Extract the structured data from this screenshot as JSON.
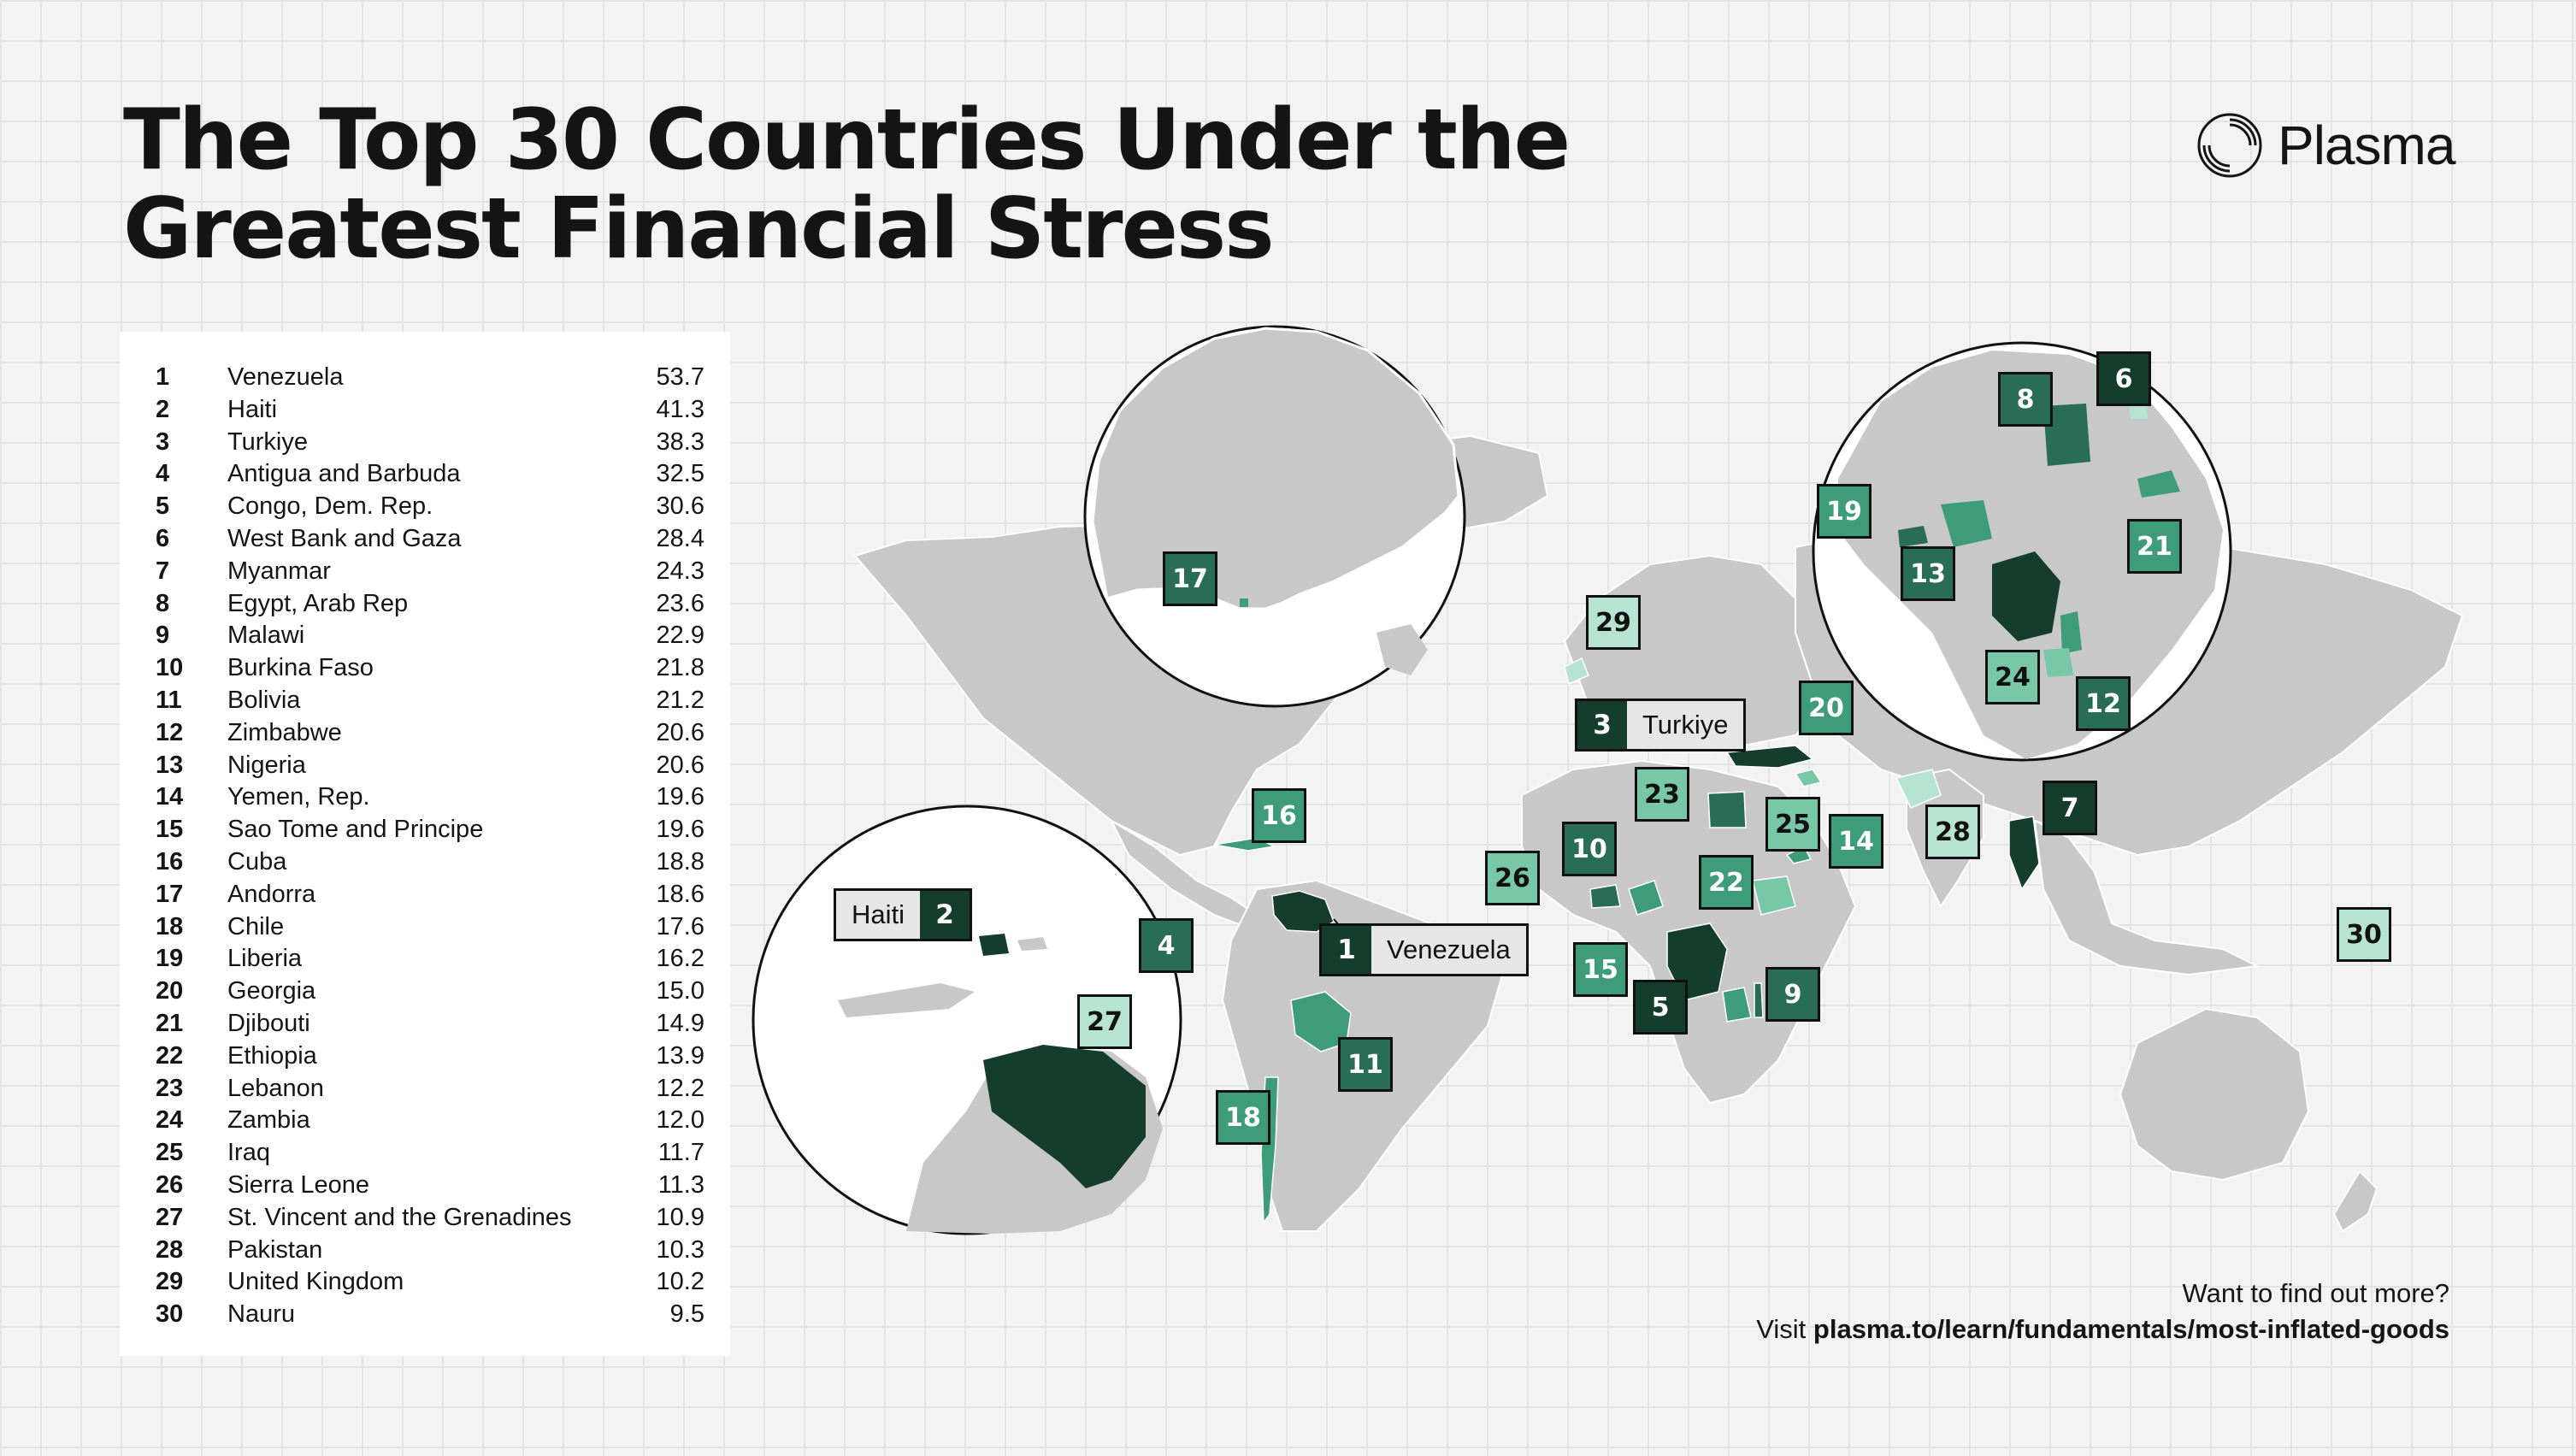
{
  "title": "The Top 30 Countries Under the Greatest Financial Stress",
  "brand": {
    "name": "Plasma"
  },
  "ranking": [
    {
      "rank": "1",
      "country": "Venezuela",
      "value": "53.7"
    },
    {
      "rank": "2",
      "country": "Haiti",
      "value": "41.3"
    },
    {
      "rank": "3",
      "country": "Turkiye",
      "value": "38.3"
    },
    {
      "rank": "4",
      "country": "Antigua and Barbuda",
      "value": "32.5"
    },
    {
      "rank": "5",
      "country": "Congo, Dem. Rep.",
      "value": "30.6"
    },
    {
      "rank": "6",
      "country": "West Bank and Gaza",
      "value": "28.4"
    },
    {
      "rank": "7",
      "country": "Myanmar",
      "value": "24.3"
    },
    {
      "rank": "8",
      "country": "Egypt, Arab Rep",
      "value": "23.6"
    },
    {
      "rank": "9",
      "country": "Malawi",
      "value": "22.9"
    },
    {
      "rank": "10",
      "country": "Burkina Faso",
      "value": "21.8"
    },
    {
      "rank": "11",
      "country": "Bolivia",
      "value": "21.2"
    },
    {
      "rank": "12",
      "country": "Zimbabwe",
      "value": "20.6"
    },
    {
      "rank": "13",
      "country": "Nigeria",
      "value": "20.6"
    },
    {
      "rank": "14",
      "country": "Yemen, Rep.",
      "value": "19.6"
    },
    {
      "rank": "15",
      "country": "Sao Tome and Principe",
      "value": "19.6"
    },
    {
      "rank": "16",
      "country": "Cuba",
      "value": "18.8"
    },
    {
      "rank": "17",
      "country": "Andorra",
      "value": "18.6"
    },
    {
      "rank": "18",
      "country": "Chile",
      "value": "17.6"
    },
    {
      "rank": "19",
      "country": "Liberia",
      "value": "16.2"
    },
    {
      "rank": "20",
      "country": "Georgia",
      "value": "15.0"
    },
    {
      "rank": "21",
      "country": "Djibouti",
      "value": "14.9"
    },
    {
      "rank": "22",
      "country": "Ethiopia",
      "value": "13.9"
    },
    {
      "rank": "23",
      "country": "Lebanon",
      "value": "12.2"
    },
    {
      "rank": "24",
      "country": "Zambia",
      "value": "12.0"
    },
    {
      "rank": "25",
      "country": "Iraq",
      "value": "11.7"
    },
    {
      "rank": "26",
      "country": "Sierra Leone",
      "value": "11.3"
    },
    {
      "rank": "27",
      "country": "St. Vincent and the Grenadines",
      "value": "10.9"
    },
    {
      "rank": "28",
      "country": "Pakistan",
      "value": "10.3"
    },
    {
      "rank": "29",
      "country": "United Kingdom",
      "value": "10.2"
    },
    {
      "rank": "30",
      "country": "Nauru",
      "value": "9.5"
    }
  ],
  "map": {
    "callouts": [
      {
        "rank": "1",
        "label": "Venezuela"
      },
      {
        "rank": "2",
        "label": "Haiti"
      },
      {
        "rank": "3",
        "label": "Turkiye"
      }
    ]
  },
  "colors": {
    "background": "#f3f3f3",
    "land": "#c8c8c8",
    "ocean": "#ffffff",
    "tier_darkest": "#153d2d",
    "tier_dark": "#2a6d56",
    "tier_mid": "#3f9c7a",
    "tier_light": "#78c7a6",
    "tier_lightest": "#b7e4d1"
  },
  "footer": {
    "line1": "Want to find out more?",
    "line2_prefix": "Visit ",
    "line2_link": "plasma.to/learn/fundamentals/most-inflated-goods"
  }
}
